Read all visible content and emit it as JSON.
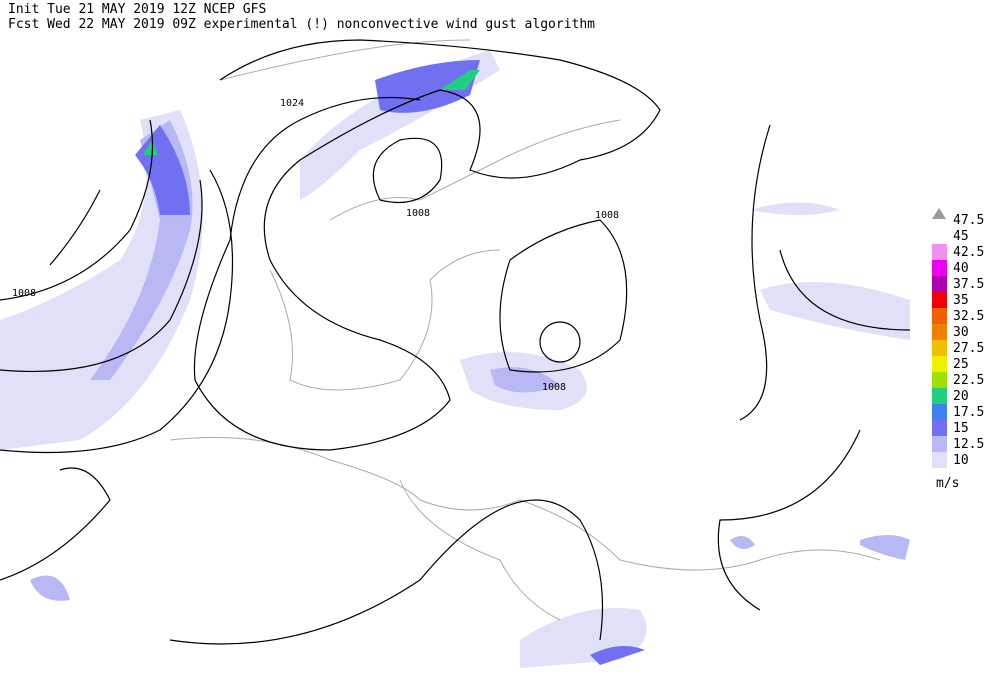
{
  "header": {
    "line1": "Init  Tue 21 MAY 2019 12Z  NCEP GFS",
    "line2": "Fcst Wed 22 MAY 2019 09Z  experimental (!) nonconvective wind gust algorithm"
  },
  "isobar_labels": [
    "1024",
    "1008",
    "1008",
    "1008",
    "1008"
  ],
  "legend": {
    "levels": [
      47.5,
      45,
      42.5,
      40,
      37.5,
      35,
      32.5,
      30,
      27.5,
      25,
      22.5,
      20,
      17.5,
      15,
      12.5,
      10
    ],
    "colors": [
      "#ffffff",
      "#ffffff",
      "#f090f0",
      "#f000f0",
      "#b000b0",
      "#f00000",
      "#f06000",
      "#f08000",
      "#f0c000",
      "#f0f000",
      "#a0e000",
      "#20d080",
      "#4080f0",
      "#7070f0",
      "#b8b8f4",
      "#e0e0f8"
    ],
    "unit": "m/s"
  }
}
